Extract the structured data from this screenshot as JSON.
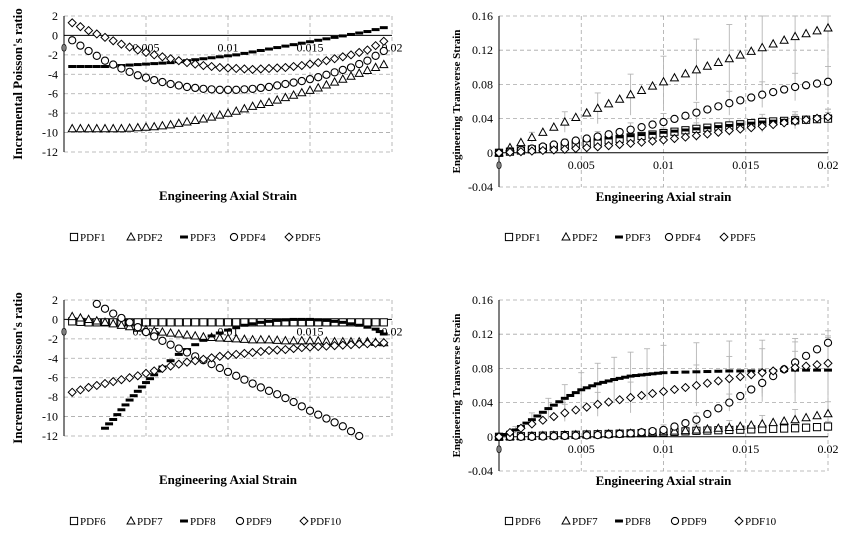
{
  "chart_data": [
    {
      "type": "scatter",
      "xlabel": "Engineering Axial Strain",
      "ylabel": "Incremental Poisson's ratio",
      "xlim": [
        0,
        0.02
      ],
      "ylim": [
        -12,
        2
      ],
      "xticks": [
        0,
        0.005,
        0.01,
        0.015,
        0.02
      ],
      "xtick_labels": [
        "0",
        "0.005",
        "0.01",
        "0.015",
        "0.02"
      ],
      "yticks": [
        -12,
        -10,
        -8,
        -6,
        -4,
        -2,
        0,
        2
      ],
      "ytick_labels": [
        "-12",
        "-10",
        "-8",
        "-6",
        "-4",
        "-2",
        "0",
        "2"
      ],
      "grid": true,
      "legend_position": "bottom",
      "series": [
        {
          "name": "PDF1",
          "marker": "square",
          "x": [],
          "y": []
        },
        {
          "name": "PDF2",
          "marker": "triangle",
          "x": [
            0.0005,
            0.0015,
            0.0025,
            0.0035,
            0.0045,
            0.0055,
            0.0065,
            0.0075,
            0.0085,
            0.0095,
            0.0105,
            0.0115,
            0.0125,
            0.0135,
            0.0145,
            0.0155,
            0.0165,
            0.0175,
            0.0185,
            0.0195
          ],
          "y": [
            -9.6,
            -9.6,
            -9.6,
            -9.6,
            -9.5,
            -9.4,
            -9.2,
            -8.9,
            -8.6,
            -8.2,
            -7.8,
            -7.3,
            -6.9,
            -6.4,
            -5.9,
            -5.4,
            -4.8,
            -4.2,
            -3.6,
            -3.0
          ]
        },
        {
          "name": "PDF3",
          "marker": "dash",
          "x": [
            0.0005,
            0.0015,
            0.0025,
            0.0035,
            0.0045,
            0.0055,
            0.0065,
            0.0075,
            0.0085,
            0.0095,
            0.0105,
            0.0115,
            0.0125,
            0.0135,
            0.0145,
            0.0155,
            0.0165,
            0.0175,
            0.0185,
            0.0195
          ],
          "y": [
            -3.2,
            -3.2,
            -3.2,
            -3.1,
            -3.0,
            -2.9,
            -2.8,
            -2.6,
            -2.4,
            -2.2,
            -2.0,
            -1.7,
            -1.4,
            -1.1,
            -0.8,
            -0.5,
            -0.2,
            0.1,
            0.4,
            0.8
          ]
        },
        {
          "name": "PDF4",
          "marker": "circle",
          "x": [
            0.0005,
            0.0015,
            0.0025,
            0.0035,
            0.0045,
            0.0055,
            0.0065,
            0.0075,
            0.0085,
            0.0095,
            0.0105,
            0.0115,
            0.0125,
            0.0135,
            0.0145,
            0.0155,
            0.0165,
            0.0175,
            0.0185,
            0.0195
          ],
          "y": [
            -0.5,
            -1.6,
            -2.6,
            -3.4,
            -4.1,
            -4.6,
            -5.0,
            -5.3,
            -5.5,
            -5.6,
            -5.6,
            -5.5,
            -5.3,
            -5.0,
            -4.7,
            -4.3,
            -3.8,
            -3.3,
            -2.6,
            -1.6
          ]
        },
        {
          "name": "PDF5",
          "marker": "diamond",
          "x": [
            0.0005,
            0.0015,
            0.0025,
            0.0035,
            0.0045,
            0.0055,
            0.0065,
            0.0075,
            0.0085,
            0.0095,
            0.0105,
            0.0115,
            0.0125,
            0.0135,
            0.0145,
            0.0155,
            0.0165,
            0.0175,
            0.0185,
            0.0195
          ],
          "y": [
            1.3,
            0.5,
            -0.2,
            -0.9,
            -1.5,
            -2.0,
            -2.4,
            -2.8,
            -3.1,
            -3.3,
            -3.4,
            -3.5,
            -3.4,
            -3.3,
            -3.1,
            -2.8,
            -2.4,
            -2.0,
            -1.5,
            -0.6
          ]
        }
      ]
    },
    {
      "type": "scatter",
      "xlabel": "Engineering Axial strain",
      "ylabel": "Engineering Transverse Strain",
      "xlim": [
        0,
        0.02
      ],
      "ylim": [
        -0.04,
        0.16
      ],
      "xticks": [
        0,
        0.005,
        0.01,
        0.015,
        0.02
      ],
      "xtick_labels": [
        "0",
        "0.005",
        "0.01",
        "0.015",
        "0.02"
      ],
      "yticks": [
        -0.04,
        0,
        0.04,
        0.08,
        0.12,
        0.16
      ],
      "ytick_labels": [
        "-0.04",
        "0",
        "0.04",
        "0.08",
        "0.12",
        "0.16"
      ],
      "grid": true,
      "error_bars": true,
      "legend_position": "bottom",
      "series": [
        {
          "name": "PDF1",
          "marker": "square",
          "x": [
            0,
            0.002,
            0.004,
            0.006,
            0.008,
            0.01,
            0.012,
            0.014,
            0.016,
            0.018,
            0.02
          ],
          "y": [
            0,
            0.004,
            0.008,
            0.013,
            0.018,
            0.023,
            0.028,
            0.032,
            0.036,
            0.038,
            0.04
          ],
          "err": [
            0,
            0.002,
            0.003,
            0.004,
            0.005,
            0.006,
            0.007,
            0.008,
            0.009,
            0.01,
            0.011
          ]
        },
        {
          "name": "PDF2",
          "marker": "triangle",
          "x": [
            0,
            0.002,
            0.004,
            0.006,
            0.008,
            0.01,
            0.012,
            0.014,
            0.016,
            0.018,
            0.02
          ],
          "y": [
            0,
            0.018,
            0.036,
            0.052,
            0.068,
            0.083,
            0.097,
            0.11,
            0.123,
            0.136,
            0.146
          ],
          "err": [
            0,
            0.006,
            0.012,
            0.018,
            0.024,
            0.03,
            0.036,
            0.04,
            0.045,
            0.05,
            0.055
          ]
        },
        {
          "name": "PDF3",
          "marker": "dash",
          "x": [
            0,
            0.002,
            0.004,
            0.006,
            0.008,
            0.01,
            0.012,
            0.014,
            0.016,
            0.018,
            0.02
          ],
          "y": [
            0,
            0.006,
            0.011,
            0.016,
            0.02,
            0.024,
            0.028,
            0.032,
            0.036,
            0.039,
            0.041
          ],
          "err": [
            0,
            0.001,
            0.002,
            0.002,
            0.003,
            0.003,
            0.004,
            0.004,
            0.005,
            0.005,
            0.006
          ]
        },
        {
          "name": "PDF4",
          "marker": "circle",
          "x": [
            0,
            0.002,
            0.004,
            0.006,
            0.008,
            0.01,
            0.012,
            0.014,
            0.016,
            0.018,
            0.02
          ],
          "y": [
            0,
            0.005,
            0.012,
            0.019,
            0.027,
            0.036,
            0.047,
            0.058,
            0.068,
            0.077,
            0.083
          ],
          "err": [
            0,
            0.002,
            0.004,
            0.006,
            0.008,
            0.01,
            0.012,
            0.014,
            0.015,
            0.016,
            0.018
          ]
        },
        {
          "name": "PDF5",
          "marker": "diamond",
          "x": [
            0,
            0.002,
            0.004,
            0.006,
            0.008,
            0.01,
            0.012,
            0.014,
            0.016,
            0.018,
            0.02
          ],
          "y": [
            0,
            0.002,
            0.004,
            0.007,
            0.011,
            0.015,
            0.02,
            0.026,
            0.031,
            0.037,
            0.042
          ],
          "err": [
            0,
            0.001,
            0.002,
            0.003,
            0.004,
            0.005,
            0.006,
            0.006,
            0.007,
            0.008,
            0.009
          ]
        }
      ]
    },
    {
      "type": "scatter",
      "xlabel": "Engineering Axial Strain",
      "ylabel": "Incremental Poisson's ratio",
      "xlim": [
        0,
        0.02
      ],
      "ylim": [
        -12,
        2
      ],
      "xticks": [
        0,
        0.005,
        0.01,
        0.015,
        0.02
      ],
      "xtick_labels": [
        "0",
        "0.005",
        "0.01",
        "0.015",
        "0.02"
      ],
      "yticks": [
        -12,
        -10,
        -8,
        -6,
        -4,
        -2,
        0,
        2
      ],
      "ytick_labels": [
        "-12",
        "-10",
        "-8",
        "-6",
        "-4",
        "-2",
        "0",
        "2"
      ],
      "grid": true,
      "legend_position": "bottom",
      "series": [
        {
          "name": "PDF6",
          "marker": "square",
          "x": [
            0.0005,
            0.0015,
            0.0025,
            0.0035,
            0.0045,
            0.0055,
            0.0065,
            0.0075,
            0.0085,
            0.0095,
            0.0105,
            0.0115,
            0.0125,
            0.0135,
            0.0145,
            0.0155,
            0.0165,
            0.0175,
            0.0185,
            0.0195
          ],
          "y": [
            -0.2,
            -0.3,
            -0.3,
            -0.3,
            -0.3,
            -0.3,
            -0.3,
            -0.3,
            -0.3,
            -0.3,
            -0.3,
            -0.3,
            -0.3,
            -0.3,
            -0.3,
            -0.3,
            -0.3,
            -0.3,
            -0.3,
            -0.3
          ]
        },
        {
          "name": "PDF7",
          "marker": "triangle",
          "x": [
            0.0005,
            0.0015,
            0.0025,
            0.0035,
            0.0045,
            0.0055,
            0.0065,
            0.0075,
            0.0085,
            0.0095,
            0.0105,
            0.0115,
            0.0125,
            0.0135,
            0.0145,
            0.0155,
            0.0165,
            0.0175,
            0.0185,
            0.0195
          ],
          "y": [
            0.3,
            0.0,
            -0.3,
            -0.6,
            -0.9,
            -1.2,
            -1.4,
            -1.6,
            -1.8,
            -1.9,
            -2.0,
            -2.1,
            -2.1,
            -2.2,
            -2.2,
            -2.2,
            -2.3,
            -2.3,
            -2.3,
            -2.4
          ]
        },
        {
          "name": "PDF8",
          "marker": "dash",
          "x": [
            0.0025,
            0.003,
            0.0035,
            0.004,
            0.0045,
            0.005,
            0.0055,
            0.006,
            0.007,
            0.008,
            0.009,
            0.01,
            0.011,
            0.012,
            0.013,
            0.014,
            0.015,
            0.016,
            0.017,
            0.018,
            0.019,
            0.0195
          ],
          "y": [
            -11.2,
            -10.3,
            -9.3,
            -8.3,
            -7.4,
            -6.5,
            -5.7,
            -4.9,
            -3.6,
            -2.6,
            -1.7,
            -1.1,
            -0.6,
            -0.3,
            -0.1,
            0.0,
            0.0,
            -0.1,
            -0.3,
            -0.6,
            -1.0,
            -1.5
          ]
        },
        {
          "name": "PDF9",
          "marker": "circle",
          "x": [
            0.002,
            0.003,
            0.004,
            0.005,
            0.006,
            0.007,
            0.008,
            0.009,
            0.01,
            0.011,
            0.012,
            0.013,
            0.014,
            0.015,
            0.016,
            0.017,
            0.018
          ],
          "y": [
            1.6,
            0.6,
            -0.3,
            -1.3,
            -2.2,
            -3.0,
            -3.8,
            -4.6,
            -5.4,
            -6.2,
            -7.0,
            -7.7,
            -8.5,
            -9.4,
            -10.2,
            -11.0,
            -12.0
          ]
        },
        {
          "name": "PDF10",
          "marker": "diamond",
          "x": [
            0.0005,
            0.0015,
            0.0025,
            0.0035,
            0.0045,
            0.0055,
            0.0065,
            0.0075,
            0.0085,
            0.0095,
            0.0105,
            0.0115,
            0.0125,
            0.0135,
            0.0145,
            0.0155,
            0.0165,
            0.0175,
            0.0185,
            0.0195
          ],
          "y": [
            -7.5,
            -7.0,
            -6.6,
            -6.2,
            -5.8,
            -5.3,
            -4.8,
            -4.4,
            -4.1,
            -3.8,
            -3.6,
            -3.4,
            -3.2,
            -3.1,
            -2.9,
            -2.8,
            -2.7,
            -2.6,
            -2.5,
            -2.4
          ]
        }
      ]
    },
    {
      "type": "scatter",
      "xlabel": "Engineering Axial strain",
      "ylabel": "Engineering Transverse Strain",
      "xlim": [
        0,
        0.02
      ],
      "ylim": [
        -0.04,
        0.16
      ],
      "xticks": [
        0,
        0.005,
        0.01,
        0.015,
        0.02
      ],
      "xtick_labels": [
        "0",
        "0.005",
        "0.01",
        "0.015",
        "0.02"
      ],
      "yticks": [
        -0.04,
        0,
        0.04,
        0.08,
        0.12,
        0.16
      ],
      "ytick_labels": [
        "-0.04",
        "0",
        "0.04",
        "0.08",
        "0.12",
        "0.16"
      ],
      "grid": true,
      "error_bars": true,
      "legend_position": "bottom",
      "series": [
        {
          "name": "PDF6",
          "marker": "square",
          "x": [
            0,
            0.002,
            0.004,
            0.006,
            0.008,
            0.01,
            0.012,
            0.014,
            0.016,
            0.018,
            0.02
          ],
          "y": [
            0,
            0.001,
            0.002,
            0.003,
            0.004,
            0.005,
            0.007,
            0.008,
            0.009,
            0.01,
            0.012
          ],
          "err": [
            0,
            0.001,
            0.002,
            0.002,
            0.003,
            0.003,
            0.004,
            0.004,
            0.005,
            0.005,
            0.006
          ]
        },
        {
          "name": "PDF7",
          "marker": "triangle",
          "x": [
            0,
            0.002,
            0.004,
            0.006,
            0.008,
            0.01,
            0.012,
            0.014,
            0.016,
            0.018,
            0.02
          ],
          "y": [
            0,
            0.001,
            0.002,
            0.003,
            0.004,
            0.006,
            0.008,
            0.011,
            0.015,
            0.02,
            0.027
          ],
          "err": [
            0,
            0.001,
            0.002,
            0.003,
            0.004,
            0.005,
            0.006,
            0.008,
            0.01,
            0.012,
            0.014
          ]
        },
        {
          "name": "PDF8",
          "marker": "dash",
          "x": [
            0,
            0.001,
            0.002,
            0.003,
            0.004,
            0.005,
            0.006,
            0.007,
            0.008,
            0.009,
            0.01,
            0.012,
            0.014,
            0.016,
            0.018,
            0.02
          ],
          "y": [
            0,
            0.008,
            0.02,
            0.033,
            0.045,
            0.055,
            0.062,
            0.067,
            0.071,
            0.073,
            0.075,
            0.076,
            0.077,
            0.077,
            0.078,
            0.078
          ],
          "err": [
            0,
            0.004,
            0.008,
            0.012,
            0.016,
            0.02,
            0.024,
            0.026,
            0.028,
            0.03,
            0.032,
            0.034,
            0.035,
            0.036,
            0.037,
            0.038
          ]
        },
        {
          "name": "PDF9",
          "marker": "circle",
          "x": [
            0,
            0.002,
            0.004,
            0.006,
            0.008,
            0.01,
            0.012,
            0.014,
            0.016,
            0.018,
            0.02
          ],
          "y": [
            0,
            0.0,
            0.001,
            0.002,
            0.004,
            0.008,
            0.02,
            0.04,
            0.063,
            0.087,
            0.11
          ],
          "err": [
            0,
            0.001,
            0.002,
            0.003,
            0.004,
            0.006,
            0.008,
            0.01,
            0.012,
            0.013,
            0.014
          ]
        },
        {
          "name": "PDF10",
          "marker": "diamond",
          "x": [
            0,
            0.002,
            0.004,
            0.006,
            0.008,
            0.01,
            0.012,
            0.014,
            0.016,
            0.018,
            0.02
          ],
          "y": [
            0,
            0.015,
            0.028,
            0.038,
            0.046,
            0.053,
            0.06,
            0.068,
            0.075,
            0.081,
            0.086
          ],
          "err": [
            0,
            0.005,
            0.01,
            0.014,
            0.018,
            0.022,
            0.024,
            0.026,
            0.028,
            0.03,
            0.032
          ]
        }
      ]
    }
  ]
}
